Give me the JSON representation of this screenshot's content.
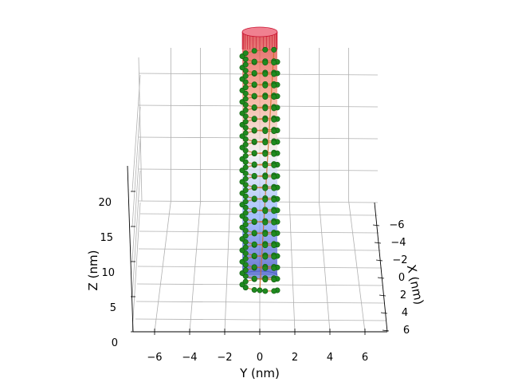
{
  "chart_data": {
    "type": "scatter",
    "title": "",
    "xlabel": "X (nm)",
    "ylabel": "Y (nm)",
    "zlabel": "Z (nm)",
    "xlim": [
      -7,
      7
    ],
    "ylim": [
      -7,
      7
    ],
    "zlim": [
      0,
      24
    ],
    "x_ticks": [
      "−6",
      "−4",
      "−2",
      "0",
      "2",
      "4",
      "6"
    ],
    "y_ticks": [
      "−6",
      "−4",
      "−2",
      "0",
      "2",
      "4",
      "6"
    ],
    "z_ticks": [
      "0",
      "5",
      "10",
      "15",
      "20"
    ],
    "grid": true,
    "colors": {
      "points": "#1f8a1f",
      "points_edge": "#0f5a0f",
      "cylinder_top": "#c8102e",
      "cylinder_mid": "#f5f5f5",
      "cylinder_bottom": "#3b4cc0"
    },
    "series": [
      {
        "type": "helix-scatter",
        "radius": 1.0,
        "z_start": 1.5,
        "z_end": 23.5,
        "pitch": 1.05,
        "points_per_turn": 10
      },
      {
        "type": "cylinder-surface",
        "radius": 1.0,
        "z_start": 1.5,
        "z_end": 24,
        "colormap": "coolwarm"
      }
    ]
  }
}
